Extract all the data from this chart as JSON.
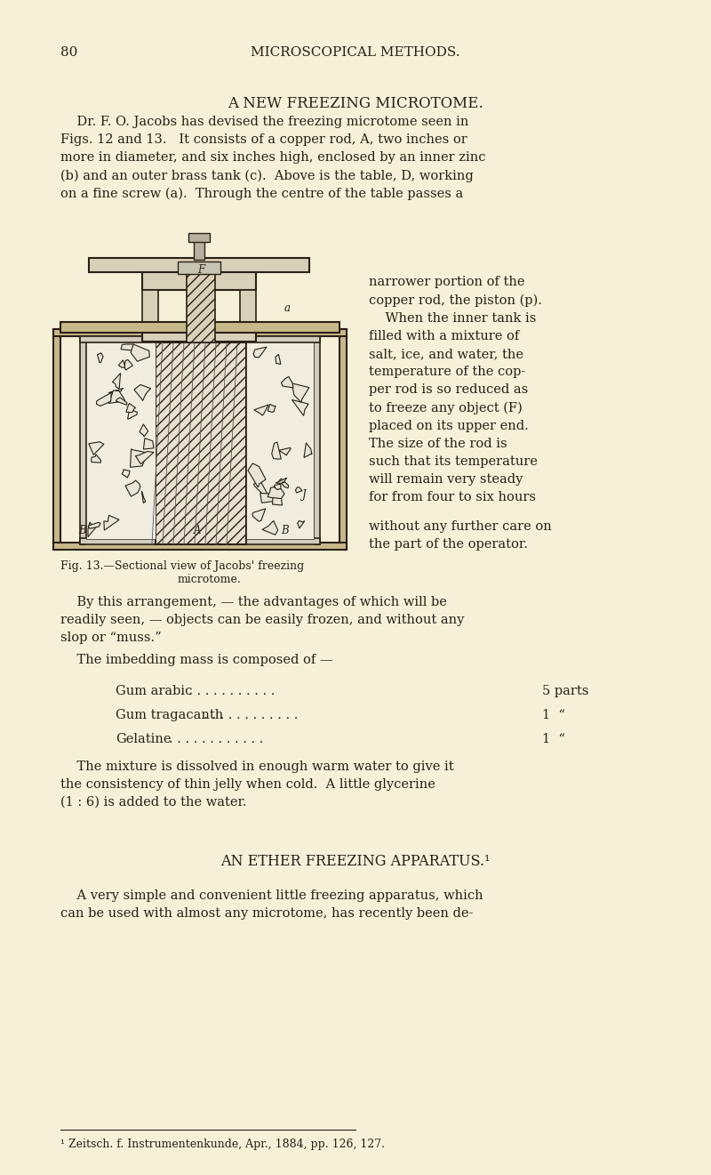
{
  "bg_color": "#f5f0d8",
  "text_color": "#2a2015",
  "page_number": "80",
  "header": "MICROSCOPICAL METHODS.",
  "section_title": "A NEW FREEZING MICROTOME.",
  "body_paragraphs": [
    "    Dr. F. O. Jacobs has devised the freezing microtome seen in Figs. 12 and 13.   It consists of a copper rod, A, two inches or more in diameter, and six inches high, enclosed by an inner zinc (b) and an outer brass tank (c).  Above is the table, D, working on a fine screw (a).  Through the centre of the table passes a",
    "narrower portion of the copper rod, the piston (p).",
    "    When the inner tank is filled with a mixture of salt, ice, and water, the temperature of the cop- per rod is so reduced as to freeze any object (F) placed on its upper end. The size of the rod is such that its temperature will remain very steady for from four to six hours",
    "without any further care on the part of the operator.",
    "    By this arrangement, — the advantages of which will be readily seen, — objects can be easily frozen, and without any slop or “muss.”",
    "    The imbedding mass is composed of —",
    "    The mixture is dissolved in enough warm water to give it the consistency of thin jelly when cold.  A little glycerine (1 : 6) is added to the water."
  ],
  "fig_caption_line1": "Fig. 13.—Sectional view of Jacobs' freezing",
  "fig_caption_line2": "microtome.",
  "formula_items": [
    [
      "Gum arabic",
      "5 parts"
    ],
    [
      "Gum tragacanth",
      "1  “"
    ],
    [
      "Gelatine",
      "1  “"
    ]
  ],
  "section2_title": "AN ETHER FREEZING APPARATUS.¹",
  "section2_body": "    A very simple and convenient little freezing apparatus, which can be used with almost any microtome, has recently been de-",
  "footnote": "¹ Zeitsch. f. Instrumentenkunde, Apr., 1884, pp. 126, 127.",
  "font_size_header": 11,
  "font_size_body": 10.5,
  "font_size_caption": 9
}
